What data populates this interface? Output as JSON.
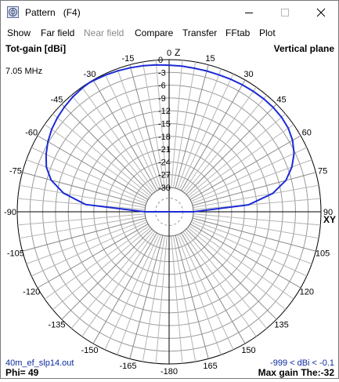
{
  "window": {
    "title": "Pattern",
    "title_suffix": "(F4)",
    "icon": "pattern-app-icon"
  },
  "menu": [
    {
      "label": "Show",
      "enabled": true
    },
    {
      "label": "Far field",
      "enabled": true
    },
    {
      "label": "Near field",
      "enabled": false
    },
    {
      "label": "Compare",
      "enabled": true
    },
    {
      "label": "Transfer",
      "enabled": true
    },
    {
      "label": "FFtab",
      "enabled": true
    },
    {
      "label": "Plot",
      "enabled": true
    }
  ],
  "plot": {
    "quantity_label": "Tot-gain [dBi]",
    "plane_label": "Vertical plane",
    "frequency": "7.05 MHz",
    "z_axis_label": "Z",
    "xy_axis_label": "XY",
    "file_name": "40m_ef_slp14.out",
    "phi_label": "Phi= 49",
    "range_label": "-999 < dBi < -0.1",
    "max_gain_label": "Max gain The:-32",
    "angle_labels": [
      "-90",
      "-75",
      "-60",
      "-45",
      "-30",
      "-15",
      "0",
      "15",
      "30",
      "45",
      "60",
      "75",
      "90",
      "105",
      "120",
      "135",
      "150",
      "165",
      "-180",
      "-165",
      "-150",
      "-135",
      "-120",
      "-105"
    ],
    "ring_labels": [
      "0",
      "-3",
      "-6",
      "-9",
      "-12",
      "-15",
      "-18",
      "-21",
      "-24",
      "-27",
      "-30"
    ],
    "pattern_color": "#1c2bd6",
    "label_color": "#0b2a9e"
  },
  "chart_data": {
    "type": "polar",
    "title": "Tot-gain [dBi]",
    "plane": "Vertical plane",
    "radial_unit": "dBi",
    "radial_range": [
      -30,
      0
    ],
    "ring_step": 3,
    "angle_ticks_step": 15,
    "series": [
      {
        "name": "",
        "theta_deg": [
          -90,
          -85,
          -80,
          -75,
          -70,
          -65,
          -60,
          -55,
          -50,
          -45,
          -40,
          -35,
          -32,
          -30,
          -25,
          -20,
          -15,
          -10,
          -5,
          0,
          5,
          10,
          15,
          20,
          25,
          30,
          35,
          40,
          45,
          50,
          55,
          60,
          65,
          70,
          75,
          80,
          85,
          90
        ],
        "gain_dbi": [
          -30,
          -16,
          -10.5,
          -7,
          -5,
          -3.8,
          -2.8,
          -2.0,
          -1.4,
          -0.9,
          -0.5,
          -0.2,
          -0.1,
          -0.15,
          -0.3,
          -0.5,
          -0.7,
          -0.9,
          -1.1,
          -1.3,
          -1.4,
          -1.5,
          -1.5,
          -1.5,
          -1.4,
          -1.3,
          -1.2,
          -1.1,
          -1.1,
          -1.2,
          -1.5,
          -2.2,
          -3.3,
          -5.0,
          -7.3,
          -11,
          -17,
          -30
        ]
      }
    ]
  }
}
